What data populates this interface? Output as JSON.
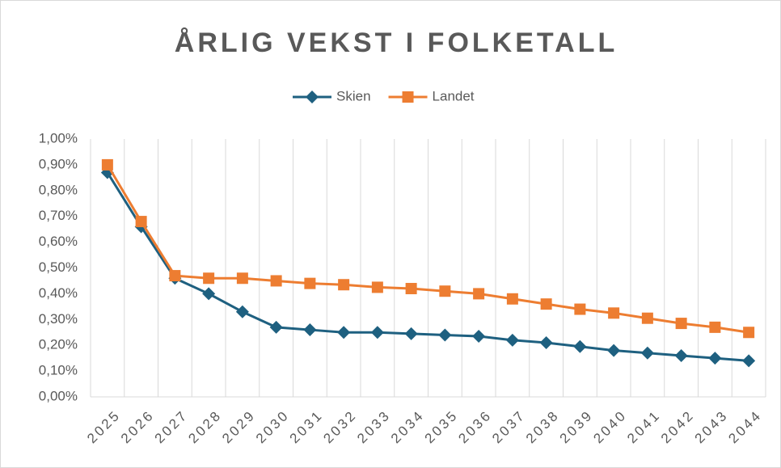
{
  "chart_data": {
    "type": "line",
    "title": "ÅRLIG VEKST I FOLKETALL",
    "categories": [
      "2025",
      "2026",
      "2027",
      "2028",
      "2029",
      "2030",
      "2031",
      "2032",
      "2033",
      "2034",
      "2035",
      "2036",
      "2037",
      "2038",
      "2039",
      "2040",
      "2041",
      "2042",
      "2043",
      "2044"
    ],
    "series": [
      {
        "name": "Skien",
        "color": "#1e6080",
        "marker": "diamond",
        "values": [
          0.87,
          0.66,
          0.46,
          0.4,
          0.33,
          0.27,
          0.26,
          0.25,
          0.25,
          0.245,
          0.24,
          0.235,
          0.22,
          0.21,
          0.195,
          0.18,
          0.17,
          0.16,
          0.15,
          0.14
        ]
      },
      {
        "name": "Landet",
        "color": "#ed7d31",
        "marker": "square",
        "values": [
          0.9,
          0.68,
          0.47,
          0.46,
          0.46,
          0.45,
          0.44,
          0.435,
          0.425,
          0.42,
          0.41,
          0.4,
          0.38,
          0.36,
          0.34,
          0.325,
          0.305,
          0.285,
          0.27,
          0.25
        ]
      }
    ],
    "ylim": [
      0,
      1
    ],
    "yticks": [
      {
        "value": 0,
        "label": "0,00%"
      },
      {
        "value": 0.1,
        "label": "0,10%"
      },
      {
        "value": 0.2,
        "label": "0,20%"
      },
      {
        "value": 0.3,
        "label": "0,30%"
      },
      {
        "value": 0.4,
        "label": "0,40%"
      },
      {
        "value": 0.5,
        "label": "0,50%"
      },
      {
        "value": 0.6,
        "label": "0,60%"
      },
      {
        "value": 0.7,
        "label": "0,70%"
      },
      {
        "value": 0.8,
        "label": "0,80%"
      },
      {
        "value": 0.9,
        "label": "0,90%"
      },
      {
        "value": 1,
        "label": "1,00%"
      }
    ],
    "x_grid": true,
    "legend": "top"
  }
}
